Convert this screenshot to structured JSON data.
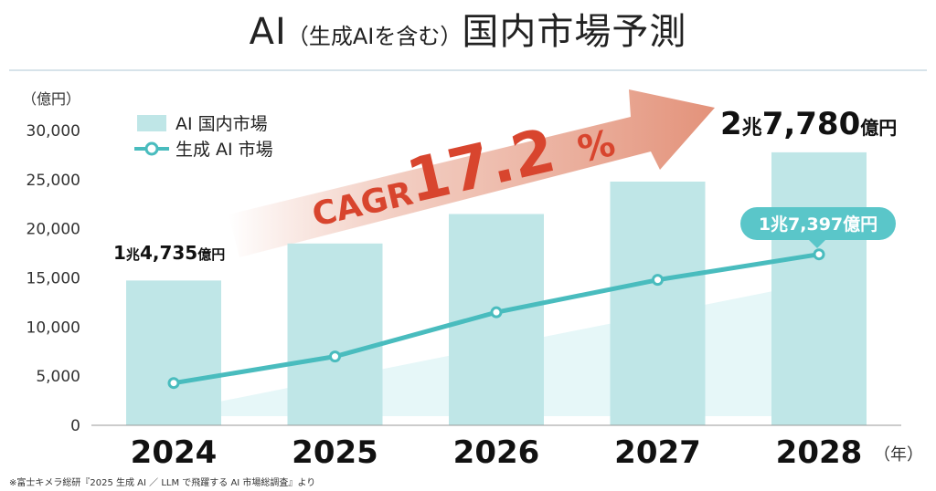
{
  "title": {
    "main_prefix": "AI",
    "paren": "（生成AIを含む）",
    "main_suffix": "国内市場予測"
  },
  "y_unit": "（億円）",
  "x_unit": "（年）",
  "source_note": "※富士キメラ総研『2025 生成 AI ／ LLM で飛躍する AI 市場総調査』より",
  "cagr_label": "CAGR",
  "cagr_value": "17.2",
  "cagr_percent": "%",
  "callouts": {
    "first_bar": {
      "num1": "1",
      "unit1": "兆",
      "num2": "4,735",
      "unit2": "億円"
    },
    "last_bar": {
      "num1": "2",
      "unit1": "兆",
      "num2": "7,780",
      "unit2": "億円"
    },
    "last_point": "1兆7,397億円"
  },
  "colors": {
    "bar": "#bfe6e7",
    "line": "#49bcbe",
    "arrow": "#e3947c",
    "cagr_text": "#d8452e",
    "badge": "#5ac6c9"
  },
  "chart_data": {
    "type": "bar",
    "categories": [
      "2024",
      "2025",
      "2026",
      "2027",
      "2028"
    ],
    "series": [
      {
        "name": "AI 国内市場",
        "type": "bar",
        "values": [
          14735,
          18500,
          21500,
          24800,
          27780
        ]
      },
      {
        "name": "生成 AI 市場",
        "type": "line",
        "values": [
          4300,
          7000,
          11500,
          14800,
          17397
        ]
      }
    ],
    "ylim": [
      0,
      30000
    ],
    "yticks": [
      0,
      5000,
      10000,
      15000,
      20000,
      25000,
      30000
    ],
    "ytick_labels": [
      "0",
      "5,000",
      "10,000",
      "15,000",
      "20,000",
      "25,000",
      "30,000"
    ],
    "legend_position": "top-left",
    "grid": false
  }
}
